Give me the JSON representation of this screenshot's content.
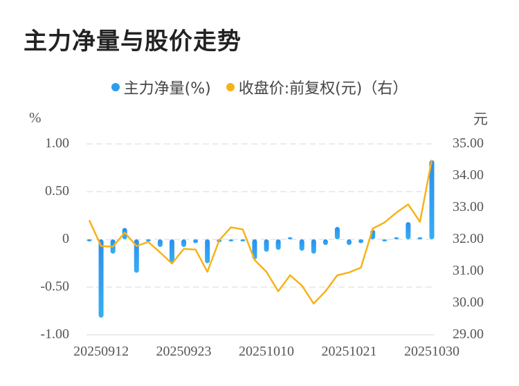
{
  "title": "主力净量与股价走势",
  "legend": [
    {
      "label": "主力净量(%)",
      "color": "#2b9cf0"
    },
    {
      "label": "收盘价:前复权(元)（右）",
      "color": "#f7b215"
    }
  ],
  "left_axis": {
    "unit": "%",
    "ticks": [
      "1.00",
      "0.50",
      "0",
      "-0.50",
      "-1.00"
    ]
  },
  "right_axis": {
    "unit": "元",
    "ticks": [
      "35.00",
      "34.00",
      "33.00",
      "32.00",
      "31.00",
      "30.00",
      "29.00"
    ]
  },
  "x_axis": {
    "ticks": [
      "20250912",
      "20250923",
      "20251010",
      "20251021",
      "20251030"
    ]
  },
  "chart_data": {
    "type": "bar+line",
    "title": "主力净量与股价走势",
    "xlabel": "",
    "ylabel_left": "%",
    "ylabel_right": "元",
    "ylim_left": [
      -1.0,
      1.0
    ],
    "ylim_right": [
      29.0,
      35.0
    ],
    "grid": true,
    "legend_position": "top",
    "x_tick_labels": [
      "20250912",
      "20250923",
      "20251010",
      "20251021",
      "20251030"
    ],
    "x_tick_indices": [
      1,
      8,
      15,
      22,
      29
    ],
    "series": [
      {
        "name": "主力净量(%)",
        "type": "bar",
        "axis": "left",
        "color": "#2b9cf0",
        "values": [
          -0.02,
          -0.82,
          -0.15,
          0.12,
          -0.35,
          -0.01,
          -0.08,
          -0.24,
          -0.08,
          -0.04,
          -0.25,
          -0.03,
          -0.01,
          -0.01,
          -0.21,
          -0.13,
          -0.11,
          0.02,
          -0.12,
          -0.15,
          -0.06,
          0.13,
          -0.06,
          -0.04,
          0.1,
          -0.02,
          0.01,
          0.18,
          0.02,
          0.83
        ]
      },
      {
        "name": "收盘价:前复权(元)（右）",
        "type": "line",
        "axis": "right",
        "color": "#f7b215",
        "values": [
          32.6,
          31.79,
          31.77,
          32.21,
          31.79,
          31.92,
          31.59,
          31.24,
          31.7,
          31.68,
          30.98,
          31.97,
          32.38,
          32.31,
          31.35,
          30.98,
          30.37,
          30.87,
          30.55,
          29.98,
          30.37,
          30.87,
          30.96,
          31.11,
          32.34,
          32.53,
          32.84,
          33.1,
          32.55,
          34.5
        ]
      }
    ]
  }
}
